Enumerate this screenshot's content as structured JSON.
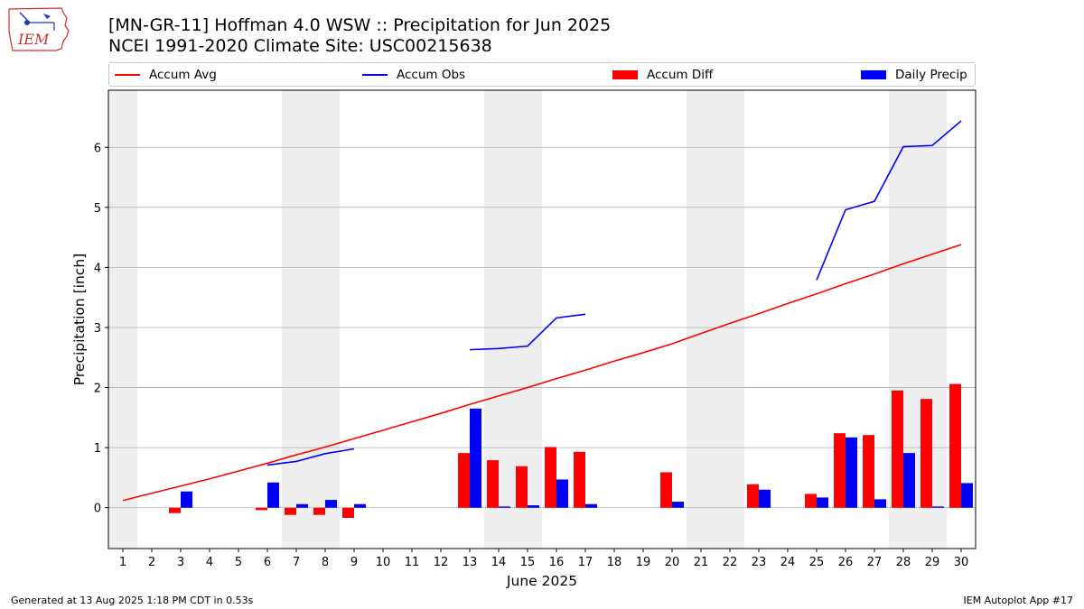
{
  "header": {
    "title_line1": "[MN-GR-11] Hoffman 4.0 WSW :: Precipitation for Jun 2025",
    "title_line2": "NCEI 1991-2020 Climate Site: USC00215638",
    "logo_text": "IEM"
  },
  "footer": {
    "left": "Generated at 13 Aug 2025 1:18 PM CDT in 0.53s",
    "right": "IEM Autoplot App #17"
  },
  "colors": {
    "avg": "#ff0000",
    "obs": "#0000ff",
    "diff": "#ff0000",
    "daily": "#0000ff",
    "weekend_band": "#eeeeee",
    "grid": "#b0b0b0"
  },
  "chart_data": {
    "type": "bar",
    "title": "[MN-GR-11] Hoffman 4.0 WSW :: Precipitation for Jun 2025",
    "subtitle": "NCEI 1991-2020 Climate Site: USC00215638",
    "xlabel": "June 2025",
    "ylabel": "Precipitation [inch]",
    "ylim": [
      -0.68,
      6.95
    ],
    "yticks": [
      0,
      1,
      2,
      3,
      4,
      5,
      6
    ],
    "grid": "horizontal",
    "legend_position": "top",
    "x": [
      1,
      2,
      3,
      4,
      5,
      6,
      7,
      8,
      9,
      10,
      11,
      12,
      13,
      14,
      15,
      16,
      17,
      18,
      19,
      20,
      21,
      22,
      23,
      24,
      25,
      26,
      27,
      28,
      29,
      30
    ],
    "weekend_days": [
      1,
      7,
      8,
      14,
      15,
      21,
      22,
      28,
      29
    ],
    "legend": [
      "Accum Avg",
      "Accum Obs",
      "Accum Diff",
      "Daily Precip"
    ],
    "series": [
      {
        "name": "Accum Avg",
        "kind": "line",
        "values": [
          0.12,
          0.24,
          0.36,
          0.48,
          0.61,
          0.74,
          0.88,
          1.01,
          1.15,
          1.29,
          1.43,
          1.57,
          1.72,
          1.86,
          2.0,
          2.15,
          2.29,
          2.44,
          2.58,
          2.73,
          2.9,
          3.07,
          3.23,
          3.4,
          3.56,
          3.73,
          3.89,
          4.06,
          4.22,
          4.38
        ]
      },
      {
        "name": "Accum Obs",
        "kind": "line",
        "values": [
          null,
          null,
          null,
          null,
          null,
          0.71,
          0.77,
          0.9,
          0.98,
          null,
          null,
          null,
          2.63,
          2.65,
          2.69,
          3.16,
          3.22,
          null,
          null,
          null,
          null,
          null,
          null,
          null,
          3.79,
          4.96,
          5.1,
          6.01,
          6.03,
          6.44
        ]
      },
      {
        "name": "Accum Diff",
        "kind": "bar",
        "values": [
          null,
          null,
          -0.09,
          null,
          null,
          -0.04,
          -0.12,
          -0.12,
          -0.17,
          null,
          null,
          null,
          0.91,
          0.79,
          0.69,
          1.01,
          0.93,
          null,
          null,
          0.59,
          null,
          null,
          0.39,
          null,
          0.23,
          1.24,
          1.21,
          1.95,
          1.81,
          2.06
        ]
      },
      {
        "name": "Daily Precip",
        "kind": "bar",
        "values": [
          null,
          null,
          0.27,
          null,
          null,
          0.42,
          0.06,
          0.13,
          0.06,
          null,
          null,
          null,
          1.65,
          0.02,
          0.04,
          0.47,
          0.06,
          null,
          null,
          0.1,
          null,
          null,
          0.3,
          null,
          0.17,
          1.17,
          0.14,
          0.91,
          0.02,
          0.41
        ]
      }
    ]
  }
}
